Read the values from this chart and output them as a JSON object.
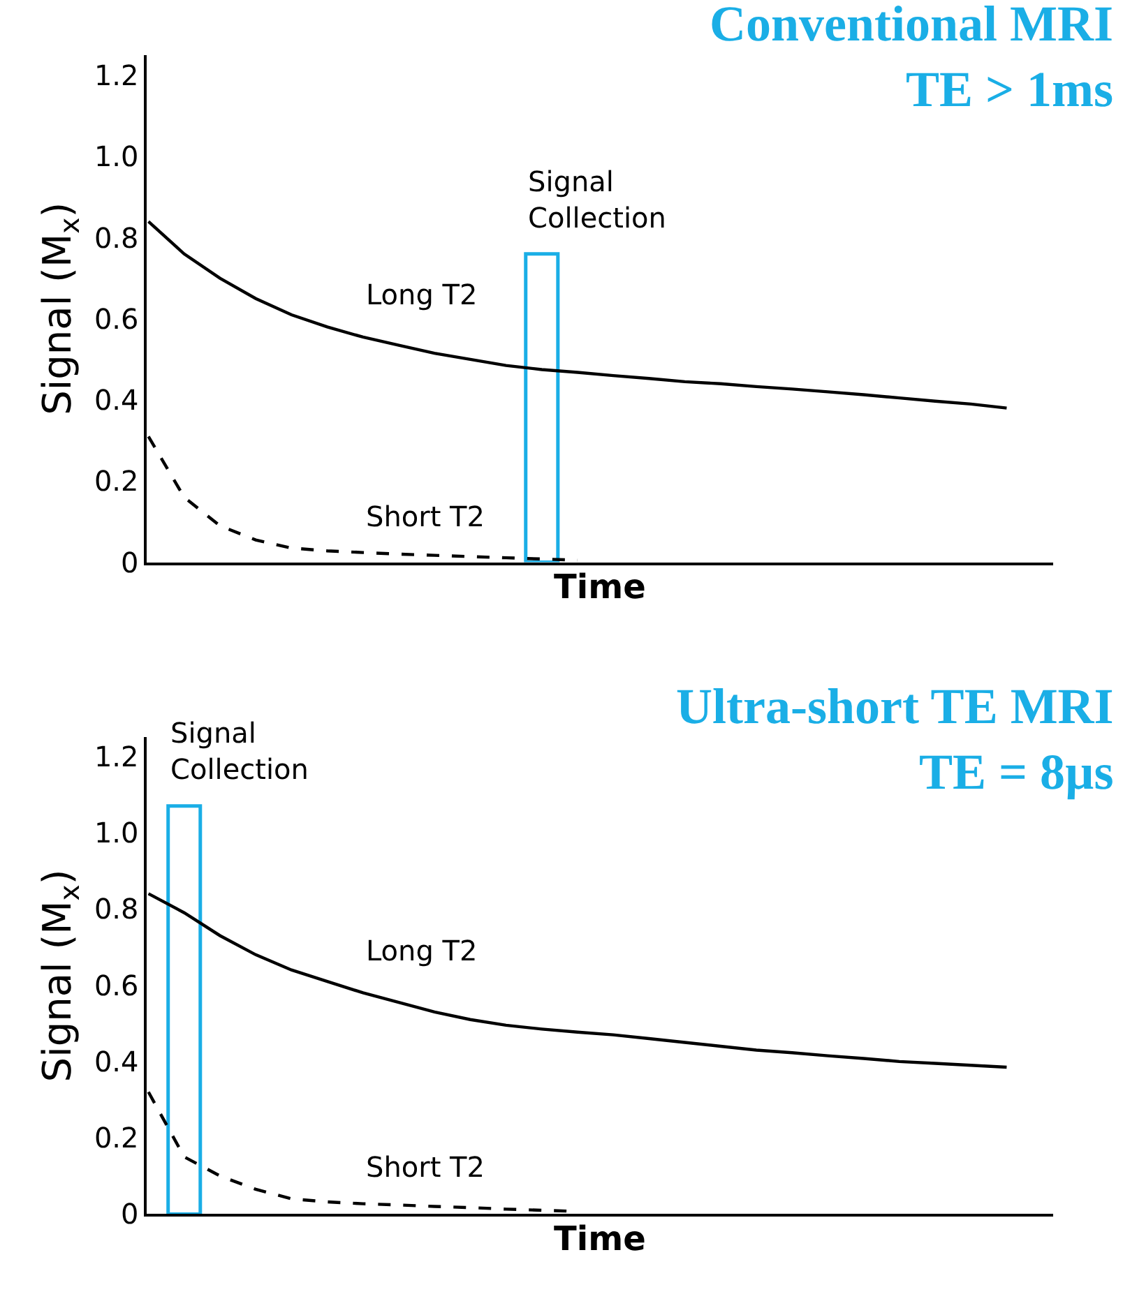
{
  "chart_data": [
    {
      "type": "line",
      "title": "Conventional MRI\nTE > 1ms",
      "xlabel": "Time",
      "ylabel": "Signal (M$_{x}$)",
      "categories": [
        null,
        null,
        null,
        null,
        null,
        null,
        null,
        null,
        null,
        null,
        null,
        null,
        null,
        null,
        null,
        null,
        null,
        null,
        null,
        null,
        null,
        null,
        null,
        null,
        null
      ],
      "ylim": [
        0,
        1.25
      ],
      "yticks": [
        0,
        0.2,
        0.4,
        0.6,
        0.8,
        {
          "value": 1,
          "label": "1.0"
        },
        1.2
      ],
      "tick_labels": "y",
      "legend": false,
      "marker": "none",
      "series": [
        {
          "name": "Long T2",
          "color": "#000000",
          "line_style": "solid",
          "values": [
            0.84,
            0.76,
            0.7,
            0.65,
            0.61,
            0.58,
            0.555,
            0.535,
            0.515,
            0.5,
            0.485,
            0.475,
            0.468,
            0.46,
            0.453,
            0.445,
            0.44,
            0.433,
            0.427,
            0.42,
            0.413,
            0.405,
            0.397,
            0.39,
            0.38
          ]
        },
        {
          "name": "Short T2",
          "color": "#000000",
          "line_style": "dashed",
          "values": [
            0.31,
            0.16,
            0.09,
            0.055,
            0.035,
            0.028,
            0.024,
            0.02,
            0.017,
            0.014,
            0.011,
            0.008,
            0.005,
            null,
            null,
            null,
            null,
            null,
            null,
            null,
            null,
            null,
            null,
            null,
            null
          ]
        },
        {
          "name": "Signal\nCollection",
          "type": "bar",
          "color": "#1aaee6",
          "values": [
            null,
            null,
            null,
            null,
            null,
            null,
            null,
            null,
            null,
            null,
            null,
            0.76,
            null,
            null,
            null,
            null,
            null,
            null,
            null,
            null,
            null,
            null,
            null,
            null,
            null
          ]
        }
      ]
    },
    {
      "type": "line",
      "title": "Ultra-short TE MRI\nTE = 8µs",
      "xlabel": "Time",
      "ylabel": "Signal (M$_{x}$)",
      "categories": [
        null,
        null,
        null,
        null,
        null,
        null,
        null,
        null,
        null,
        null,
        null,
        null,
        null,
        null,
        null,
        null,
        null,
        null,
        null,
        null,
        null,
        null,
        null,
        null,
        null
      ],
      "ylim": [
        0,
        1.25
      ],
      "yticks": [
        0,
        0.2,
        0.4,
        0.6,
        0.8,
        {
          "value": 1,
          "label": "1.0"
        },
        1.2
      ],
      "tick_labels": "y",
      "legend": false,
      "marker": "none",
      "series": [
        {
          "name": "Long T2",
          "color": "#000000",
          "line_style": "solid",
          "values": [
            0.84,
            0.79,
            0.73,
            0.68,
            0.64,
            0.61,
            0.58,
            0.555,
            0.53,
            0.51,
            0.495,
            0.485,
            0.477,
            0.47,
            0.46,
            0.45,
            0.44,
            0.43,
            0.423,
            0.415,
            0.408,
            0.4,
            0.395,
            0.39,
            0.385
          ]
        },
        {
          "name": "Short T2",
          "color": "#000000",
          "line_style": "dashed",
          "values": [
            0.32,
            0.15,
            0.1,
            0.065,
            0.04,
            0.032,
            0.027,
            0.024,
            0.02,
            0.017,
            0.013,
            0.01,
            0.007,
            null,
            null,
            null,
            null,
            null,
            null,
            null,
            null,
            null,
            null,
            null,
            null
          ]
        },
        {
          "name": "Signal\nCollection",
          "type": "bar",
          "color": "#1aaee6",
          "values": [
            null,
            1.07,
            null,
            null,
            null,
            null,
            null,
            null,
            null,
            null,
            null,
            null,
            null,
            null,
            null,
            null,
            null,
            null,
            null,
            null,
            null,
            null,
            null,
            null,
            null
          ]
        }
      ]
    }
  ]
}
